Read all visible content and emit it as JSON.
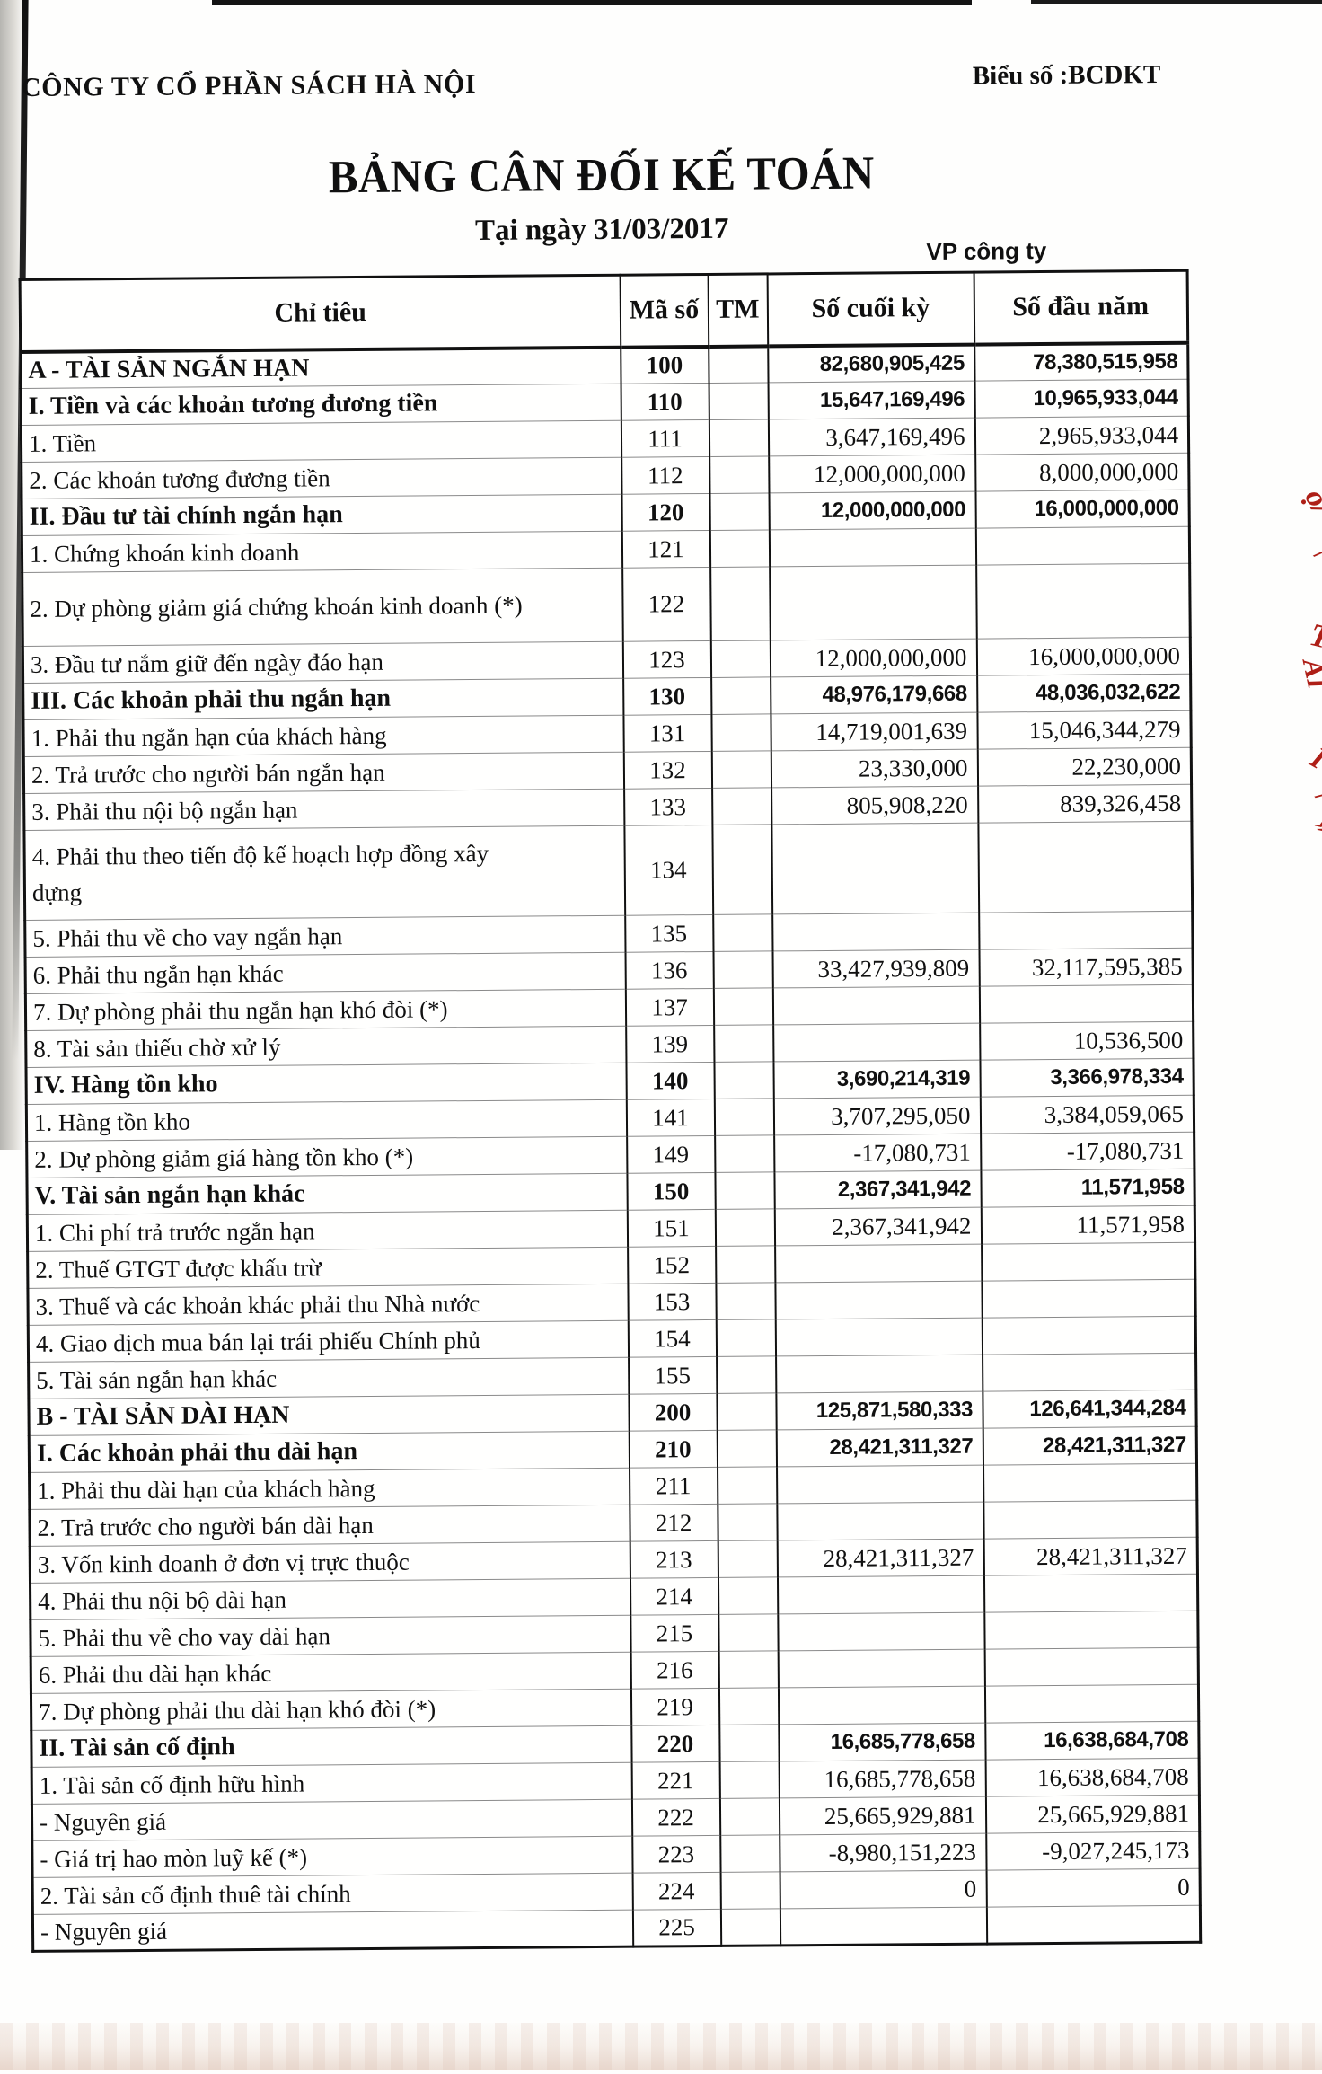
{
  "header": {
    "company": "CÔNG TY CỔ PHẦN SÁCH HÀ NỘI",
    "form_label": "Biểu số :BCDKT",
    "title": "BẢNG CÂN ĐỐI KẾ TOÁN",
    "date_line": "Tại ngày 31/03/2017",
    "entity_label": "VP công ty"
  },
  "table": {
    "columns": {
      "item": "Chỉ tiêu",
      "code": "Mã số",
      "tm": "TM",
      "ending": "Số cuối kỳ",
      "beginning": "Số đầu năm"
    },
    "rows": [
      {
        "label": "A - TÀI SẢN NGẮN HẠN",
        "code": "100",
        "tm": "",
        "ending": "82,680,905,425",
        "beginning": "78,380,515,958",
        "bold": true
      },
      {
        "label": "I. Tiền và các khoản tương đương tiền",
        "code": "110",
        "tm": "",
        "ending": "15,647,169,496",
        "beginning": "10,965,933,044",
        "bold": true
      },
      {
        "label": "1. Tiền",
        "code": "111",
        "tm": "",
        "ending": "3,647,169,496",
        "beginning": "2,965,933,044",
        "bold": false
      },
      {
        "label": "2. Các khoản tương đương tiền",
        "code": "112",
        "tm": "",
        "ending": "12,000,000,000",
        "beginning": "8,000,000,000",
        "bold": false
      },
      {
        "label": "II. Đầu tư tài chính ngắn hạn",
        "code": "120",
        "tm": "",
        "ending": "12,000,000,000",
        "beginning": "16,000,000,000",
        "bold": true
      },
      {
        "label": "1. Chứng khoán kinh doanh",
        "code": "121",
        "tm": "",
        "ending": "",
        "beginning": "",
        "bold": false
      },
      {
        "label": "2. Dự phòng giảm giá chứng khoán kinh doanh (*)",
        "code": "122",
        "tm": "",
        "ending": "",
        "beginning": "",
        "bold": false
      },
      {
        "label": "3. Đầu tư nắm giữ đến ngày đáo hạn",
        "code": "123",
        "tm": "",
        "ending": "12,000,000,000",
        "beginning": "16,000,000,000",
        "bold": false
      },
      {
        "label": "III. Các khoản phải thu ngắn hạn",
        "code": "130",
        "tm": "",
        "ending": "48,976,179,668",
        "beginning": "48,036,032,622",
        "bold": true
      },
      {
        "label": "1. Phải thu ngắn hạn của khách hàng",
        "code": "131",
        "tm": "",
        "ending": "14,719,001,639",
        "beginning": "15,046,344,279",
        "bold": false
      },
      {
        "label": "2. Trả trước cho người bán ngắn hạn",
        "code": "132",
        "tm": "",
        "ending": "23,330,000",
        "beginning": "22,230,000",
        "bold": false
      },
      {
        "label": "3. Phải thu nội bộ ngắn hạn",
        "code": "133",
        "tm": "",
        "ending": "805,908,220",
        "beginning": "839,326,458",
        "bold": false
      },
      {
        "label": "4. Phải thu theo tiến độ kế hoạch hợp đồng xây dựng",
        "code": "134",
        "tm": "",
        "ending": "",
        "beginning": "",
        "bold": false
      },
      {
        "label": "5. Phải thu về cho vay ngắn hạn",
        "code": "135",
        "tm": "",
        "ending": "",
        "beginning": "",
        "bold": false
      },
      {
        "label": "6. Phải thu ngắn hạn khác",
        "code": "136",
        "tm": "",
        "ending": "33,427,939,809",
        "beginning": "32,117,595,385",
        "bold": false
      },
      {
        "label": "7. Dự phòng phải thu ngắn hạn khó đòi (*)",
        "code": "137",
        "tm": "",
        "ending": "",
        "beginning": "",
        "bold": false
      },
      {
        "label": "8. Tài sản thiếu chờ xử lý",
        "code": "139",
        "tm": "",
        "ending": "",
        "beginning": "10,536,500",
        "bold": false
      },
      {
        "label": "IV. Hàng tồn kho",
        "code": "140",
        "tm": "",
        "ending": "3,690,214,319",
        "beginning": "3,366,978,334",
        "bold": true
      },
      {
        "label": "1. Hàng tồn kho",
        "code": "141",
        "tm": "",
        "ending": "3,707,295,050",
        "beginning": "3,384,059,065",
        "bold": false
      },
      {
        "label": "2. Dự phòng giảm giá hàng tồn kho (*)",
        "code": "149",
        "tm": "",
        "ending": "-17,080,731",
        "beginning": "-17,080,731",
        "bold": false
      },
      {
        "label": "V. Tài sản ngắn hạn khác",
        "code": "150",
        "tm": "",
        "ending": "2,367,341,942",
        "beginning": "11,571,958",
        "bold": true
      },
      {
        "label": "1. Chi phí trả trước ngắn hạn",
        "code": "151",
        "tm": "",
        "ending": "2,367,341,942",
        "beginning": "11,571,958",
        "bold": false
      },
      {
        "label": "2. Thuế GTGT được khấu trừ",
        "code": "152",
        "tm": "",
        "ending": "",
        "beginning": "",
        "bold": false
      },
      {
        "label": "3. Thuế và các khoản khác phải thu Nhà nước",
        "code": "153",
        "tm": "",
        "ending": "",
        "beginning": "",
        "bold": false
      },
      {
        "label": "4. Giao dịch mua bán lại trái phiếu Chính phủ",
        "code": "154",
        "tm": "",
        "ending": "",
        "beginning": "",
        "bold": false
      },
      {
        "label": "5. Tài sản ngắn hạn khác",
        "code": "155",
        "tm": "",
        "ending": "",
        "beginning": "",
        "bold": false
      },
      {
        "label": "B - TÀI SẢN DÀI HẠN",
        "code": "200",
        "tm": "",
        "ending": "125,871,580,333",
        "beginning": "126,641,344,284",
        "bold": true
      },
      {
        "label": "I. Các khoản phải thu dài hạn",
        "code": "210",
        "tm": "",
        "ending": "28,421,311,327",
        "beginning": "28,421,311,327",
        "bold": true
      },
      {
        "label": "1. Phải thu dài hạn của khách hàng",
        "code": "211",
        "tm": "",
        "ending": "",
        "beginning": "",
        "bold": false
      },
      {
        "label": "2. Trả trước cho người bán dài hạn",
        "code": "212",
        "tm": "",
        "ending": "",
        "beginning": "",
        "bold": false
      },
      {
        "label": "3. Vốn kinh doanh ở đơn vị trực thuộc",
        "code": "213",
        "tm": "",
        "ending": "28,421,311,327",
        "beginning": "28,421,311,327",
        "bold": false
      },
      {
        "label": "4. Phải thu nội bộ dài hạn",
        "code": "214",
        "tm": "",
        "ending": "",
        "beginning": "",
        "bold": false
      },
      {
        "label": "5. Phải thu về cho vay dài hạn",
        "code": "215",
        "tm": "",
        "ending": "",
        "beginning": "",
        "bold": false
      },
      {
        "label": "6. Phải thu dài hạn khác",
        "code": "216",
        "tm": "",
        "ending": "",
        "beginning": "",
        "bold": false
      },
      {
        "label": "7. Dự phòng phải thu dài hạn khó đòi (*)",
        "code": "219",
        "tm": "",
        "ending": "",
        "beginning": "",
        "bold": false
      },
      {
        "label": "II. Tài sản cố định",
        "code": "220",
        "tm": "",
        "ending": "16,685,778,658",
        "beginning": "16,638,684,708",
        "bold": true
      },
      {
        "label": "1. Tài sản cố định hữu hình",
        "code": "221",
        "tm": "",
        "ending": "16,685,778,658",
        "beginning": "16,638,684,708",
        "bold": false
      },
      {
        "label": "- Nguyên giá",
        "code": "222",
        "tm": "",
        "ending": "25,665,929,881",
        "beginning": "25,665,929,881",
        "bold": false
      },
      {
        "label": "- Giá trị hao mòn luỹ kế (*)",
        "code": "223",
        "tm": "",
        "ending": "-8,980,151,223",
        "beginning": "-9,027,245,173",
        "bold": false
      },
      {
        "label": "2. Tài sản cố định thuê tài chính",
        "code": "224",
        "tm": "",
        "ending": "0",
        "beginning": "0",
        "bold": false
      },
      {
        "label": "- Nguyên giá",
        "code": "225",
        "tm": "",
        "ending": "",
        "beginning": "",
        "bold": false
      }
    ]
  },
  "margin_marks": [
    "ọ/",
    "/",
    "T",
    "ÀI",
    "I",
    "/",
    "»"
  ]
}
